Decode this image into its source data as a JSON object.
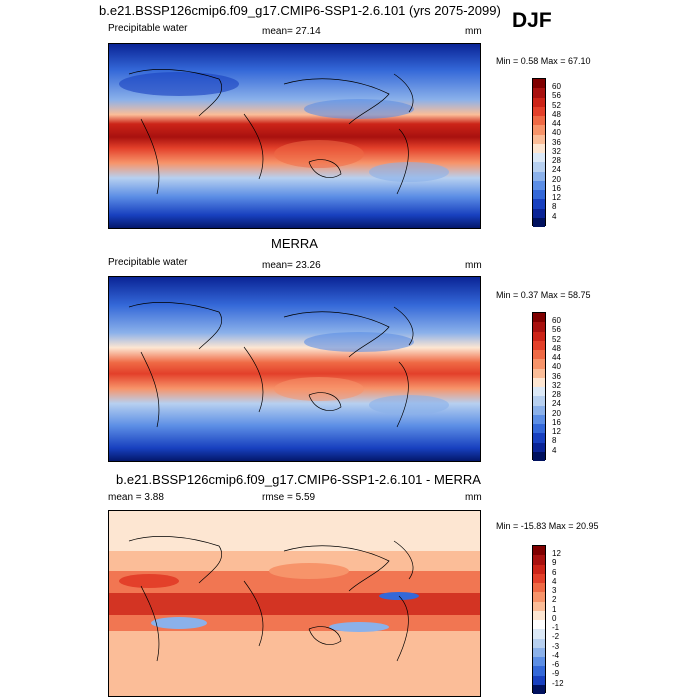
{
  "season": "DJF",
  "panels": [
    {
      "title": "b.e21.BSSP126cmip6.f09_g17.CMIP6-SSP1-2.6.101 (yrs 2075-2099)",
      "variable": "Precipitable water",
      "stat_text": "mean=  27.14",
      "units": "mm",
      "minmax": "Min =   0.58 Max =  67.10",
      "colorbar_labels": [
        "60",
        "56",
        "52",
        "48",
        "44",
        "40",
        "36",
        "32",
        "28",
        "24",
        "20",
        "16",
        "12",
        "8",
        "4"
      ]
    },
    {
      "title": "MERRA",
      "variable": "Precipitable water",
      "stat_text": "mean=  23.26",
      "units": "mm",
      "minmax": "Min =   0.37 Max =  58.75",
      "colorbar_labels": [
        "60",
        "56",
        "52",
        "48",
        "44",
        "40",
        "36",
        "32",
        "28",
        "24",
        "20",
        "16",
        "12",
        "8",
        "4"
      ]
    },
    {
      "title": "b.e21.BSSP126cmip6.f09_g17.CMIP6-SSP1-2.6.101 - MERRA",
      "variable": "mean =   3.88",
      "stat_text": "rmse =   5.59",
      "units": "mm",
      "minmax": "Min = -15.83 Max =  20.95",
      "colorbar_labels": [
        "12",
        "9",
        "6",
        "4",
        "3",
        "2",
        "1",
        "0",
        "-1",
        "-2",
        "-3",
        "-4",
        "-6",
        "-9",
        "-12"
      ]
    }
  ],
  "colors": {
    "abs_scale": [
      "#7f0000",
      "#a8110f",
      "#cc2418",
      "#e3402a",
      "#ef6a45",
      "#f7946a",
      "#fbbd98",
      "#fde6d2",
      "#dce9f7",
      "#b7d0f0",
      "#8bb1ea",
      "#5c8ee5",
      "#3468d8",
      "#1840bf",
      "#0a2496",
      "#00115e"
    ],
    "diff_scale": [
      "#7f0000",
      "#a8110f",
      "#cc2418",
      "#e3402a",
      "#ef6a45",
      "#f7946a",
      "#fbbd98",
      "#fde6d2",
      "#ffffff",
      "#dce9f7",
      "#b7d0f0",
      "#8bb1ea",
      "#5c8ee5",
      "#3468d8",
      "#1840bf",
      "#00115e"
    ]
  }
}
